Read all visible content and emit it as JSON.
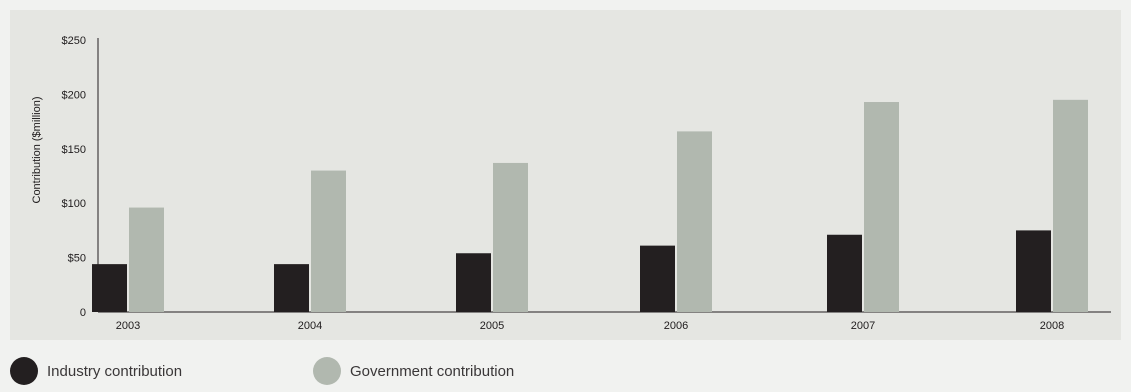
{
  "chart_data": {
    "type": "bar",
    "title": "",
    "xlabel": "",
    "ylabel": "Contribution ($million)",
    "categories": [
      "2003",
      "2004",
      "2005",
      "2006",
      "2007",
      "2008"
    ],
    "series": [
      {
        "name": "Industry contribution",
        "color": "#231f20",
        "values": [
          44,
          44,
          54,
          61,
          71,
          75
        ]
      },
      {
        "name": "Government contribution",
        "color": "#b1b8af",
        "values": [
          96,
          130,
          137,
          166,
          193,
          195
        ]
      }
    ],
    "ylim": [
      0,
      250
    ],
    "yticks": [
      {
        "value": 0,
        "label": "0"
      },
      {
        "value": 50,
        "label": "$50"
      },
      {
        "value": 100,
        "label": "$100"
      },
      {
        "value": 150,
        "label": "$150"
      },
      {
        "value": 200,
        "label": "$200"
      },
      {
        "value": 250,
        "label": "$250"
      }
    ],
    "grid": false,
    "legend_position": "bottom-left"
  }
}
